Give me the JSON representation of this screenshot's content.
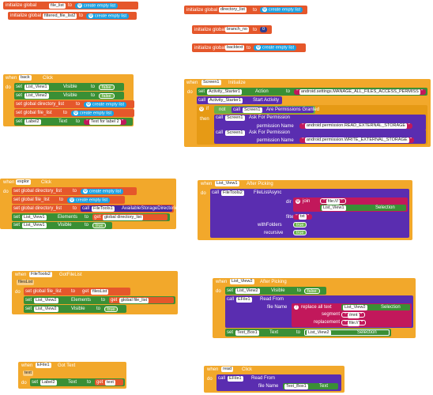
{
  "globals": {
    "g1": {
      "kw": "initialize global",
      "name": "file_list",
      "to": "to",
      "val": "create empty list"
    },
    "g2": {
      "kw": "initialize global",
      "name": "filtered_file_list2",
      "to": "to",
      "val": "create empty list"
    },
    "g3": {
      "kw": "initialize global",
      "name": "directory_list",
      "to": "to",
      "val": "create empty list"
    },
    "g4": {
      "kw": "initialize global",
      "name": "branch_no",
      "to": "to",
      "val": "0"
    },
    "g5": {
      "kw": "initialize global",
      "name": "backtext",
      "to": "to",
      "val": "create empty list"
    }
  },
  "back": {
    "when": "when",
    "comp": "back",
    "event": "Click",
    "do": "do",
    "r1": {
      "set": "set",
      "comp": "List_View1",
      "prop": "Visible",
      "to": "to",
      "val": "false"
    },
    "r2": {
      "set": "set",
      "comp": "List_View2",
      "prop": "Visible",
      "to": "to",
      "val": "false"
    },
    "r3": {
      "set": "set global directory_list",
      "to": "to",
      "val": "create empty list"
    },
    "r4": {
      "set": "set global file_list",
      "to": "to",
      "val": "create empty list"
    },
    "r5": {
      "set": "set",
      "comp": "Label2",
      "prop": "Text",
      "to": "to",
      "val": "Text for label 2"
    }
  },
  "screen": {
    "when": "when",
    "comp": "Screen1",
    "event": "Initialize",
    "do": "do",
    "r1": {
      "set": "set",
      "comp": "Activity_Starter1",
      "prop": "Action",
      "to": "to",
      "val": "android.settings.MANAGE_ALL_FILES_ACCESS_PERMISS"
    },
    "r2": {
      "call": "call",
      "comp": "Activity_Starter1",
      "method": "Start Activity"
    },
    "r3": {
      "if": "if",
      "not": "not",
      "call": "call",
      "comp": "Screen1",
      "method": "Are Permissions Granted"
    },
    "then": "then",
    "r4": {
      "call": "call",
      "comp": "Screen1",
      "method": "Ask For Permission",
      "param": "permission Name",
      "val": "android.permission.READ_EXTERNAL_STORAGE"
    },
    "r5": {
      "call": "call",
      "comp": "Screen1",
      "method": "Ask For Permission",
      "param": "permission Name",
      "val": "android.permission.WRITE_EXTERNAL_STORAGE"
    }
  },
  "explor": {
    "when": "when",
    "comp": "explor",
    "event": "Click",
    "do": "do",
    "r1": {
      "set": "set global directory_list",
      "to": "to",
      "val": "create empty list"
    },
    "r2": {
      "set": "set global file_list",
      "to": "to",
      "val": "create empty list"
    },
    "r3": {
      "set": "set global directory_list",
      "to": "to",
      "call": "call",
      "comp": "FileTools1",
      "method": "AvailableStorageDirectories"
    },
    "r4": {
      "set": "set",
      "comp": "List_View1",
      "prop": "Elements",
      "to": "to",
      "get": "get",
      "gv": "global directory_list"
    },
    "r5": {
      "set": "set",
      "comp": "List_View1",
      "prop": "Visible",
      "to": "to",
      "val": "true"
    }
  },
  "lv1": {
    "when": "when",
    "comp": "List_View1",
    "event": "After Picking",
    "do": "do",
    "call": "call",
    "ccomp": "FileTools2",
    "method": "FileListAsync",
    "dir": "dir",
    "join": "join",
    "s1": "file:///",
    "sel_comp": "List_View1",
    "sel": "Selection",
    "filter": "filter",
    "fval": "txt",
    "withFolders": "withFolders",
    "wval": "true",
    "recursive": "recursive",
    "rval": "true"
  },
  "ftools": {
    "when": "when",
    "comp": "FileTools2",
    "event": "GotFileList",
    "param": "filesList",
    "do": "do",
    "r1": {
      "set": "set global file_list",
      "to": "to",
      "get": "get",
      "gv": "filesList"
    },
    "r2": {
      "set": "set",
      "comp": "List_View2",
      "prop": "Elements",
      "to": "to",
      "get": "get",
      "gv": "global file_list"
    },
    "r3": {
      "set": "set",
      "comp": "List_View2",
      "prop": "Visible",
      "to": "to",
      "val": "true"
    }
  },
  "lv2": {
    "when": "when",
    "comp": "List_View2",
    "event": "After Picking",
    "do": "do",
    "r1": {
      "set": "set",
      "comp": "List_View2",
      "prop": "Visible",
      "to": "to",
      "val": "false"
    },
    "call": "call",
    "ccomp": "EFile1",
    "method": "Read From",
    "fname": "file Name",
    "replace": "replace all text",
    "rcomp": "List_View2",
    "rprop": "Selection",
    "segment": "segment",
    "segval": "/mnt",
    "replacement": "replacement",
    "repval": "file://",
    "r3": {
      "set": "set",
      "comp": "Text_Box1",
      "prop": "Text",
      "to": "to",
      "comp2": "List_View2",
      "prop2": "Selection"
    }
  },
  "efile": {
    "when": "when",
    "comp": "EFile1",
    "event": "Got Text",
    "param": "text",
    "do": "do",
    "r1": {
      "set": "set",
      "comp": "Label2",
      "prop": "Text",
      "to": "to",
      "get": "get",
      "gv": "text"
    }
  },
  "read": {
    "when": "when",
    "comp": "read",
    "event": "Click",
    "do": "do",
    "call": "call",
    "ccomp": "EFile1",
    "method": "Read From",
    "fname": "file Name",
    "vcomp": "Text_Box1",
    "vprop": "Text"
  }
}
